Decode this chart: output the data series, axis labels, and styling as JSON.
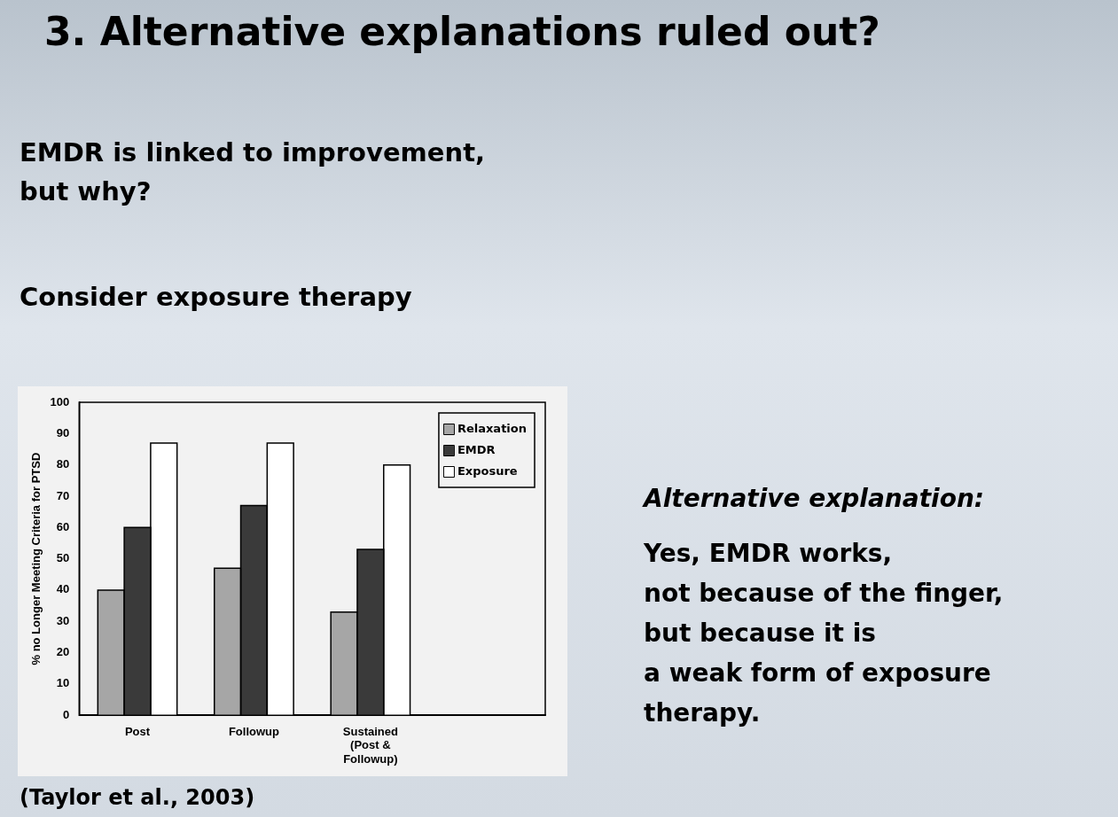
{
  "chart_data": {
    "type": "bar",
    "title": "3. Alternative explanations ruled out?",
    "ylabel": "% no Longer Meeting Criteria for PTSD",
    "categories": [
      "Post",
      "Followup",
      "Sustained (Post & Followup)",
      null
    ],
    "series": [
      {
        "name": "Relaxation",
        "color": "#a6a6a6",
        "values": [
          40,
          47,
          33,
          null
        ]
      },
      {
        "name": "EMDR",
        "color": "#3a3a3a",
        "values": [
          60,
          67,
          53,
          null
        ]
      },
      {
        "name": "Exposure",
        "color": "#ffffff",
        "values": [
          87,
          87,
          80,
          null
        ]
      }
    ],
    "ylim": [
      0,
      100
    ],
    "yticks": [
      0,
      10,
      20,
      30,
      40,
      50,
      60,
      70,
      80,
      90,
      100
    ],
    "grid": false,
    "legend": "top right",
    "annotations": [
      "EMDR is linked to improvement,\nbut why?",
      "Consider exposure therapy",
      "Alternative explanation:",
      "Yes, EMDR works,\nnot because of the finger,\nbut because it is\na weak form of exposure\ntherapy.",
      "(Taylor et al., 2003)"
    ]
  }
}
